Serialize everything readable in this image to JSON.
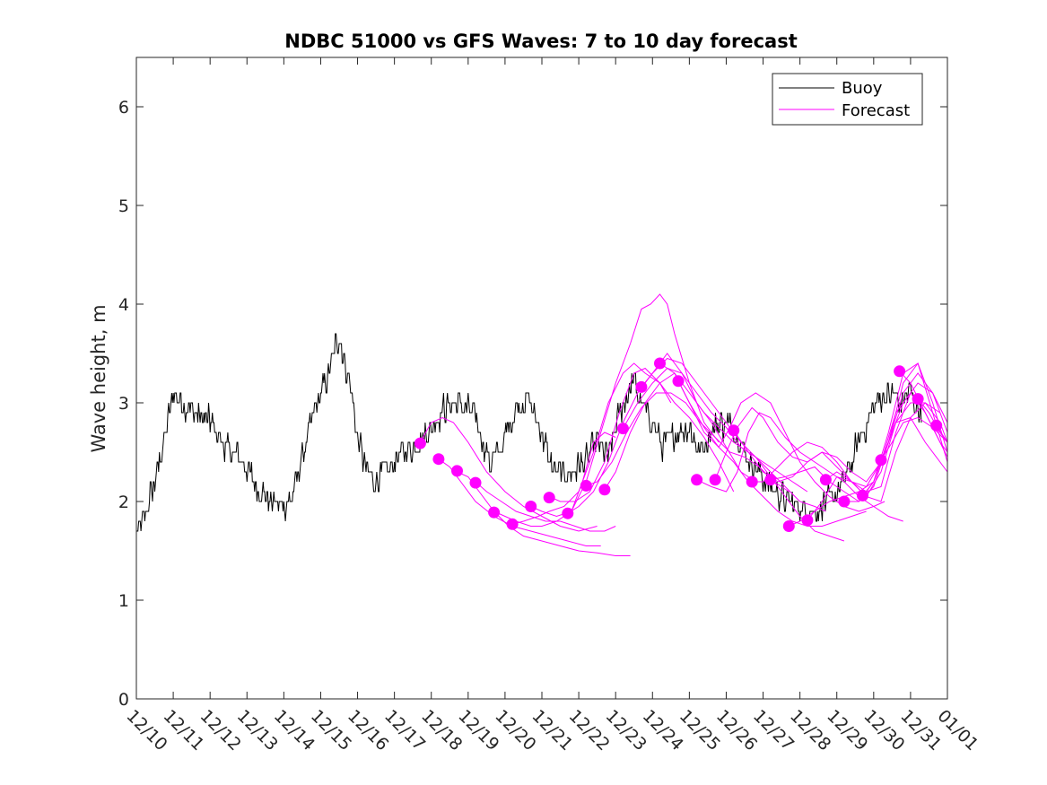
{
  "chart_data": {
    "type": "line",
    "title": "NDBC 51000 vs GFS Waves: 7 to 10 day forecast",
    "xlabel": "",
    "ylabel": "Wave height, m",
    "xlim": [
      0,
      22
    ],
    "ylim": [
      0,
      6.5
    ],
    "x_unit": "days since 12/10",
    "x_ticks": [
      0,
      1,
      2,
      3,
      4,
      5,
      6,
      7,
      8,
      9,
      10,
      11,
      12,
      13,
      14,
      15,
      16,
      17,
      18,
      19,
      20,
      21,
      22
    ],
    "x_tick_labels": [
      "12/10",
      "12/11",
      "12/12",
      "12/13",
      "12/14",
      "12/15",
      "12/16",
      "12/17",
      "12/18",
      "12/19",
      "12/20",
      "12/21",
      "12/22",
      "12/23",
      "12/24",
      "12/25",
      "12/26",
      "12/27",
      "12/28",
      "12/29",
      "12/30",
      "12/31",
      "01/01"
    ],
    "y_ticks": [
      0,
      1,
      2,
      3,
      4,
      5,
      6
    ],
    "y_tick_labels": [
      "0",
      "1",
      "2",
      "3",
      "4",
      "5",
      "6"
    ],
    "grid": false,
    "legend": {
      "position": "top-right",
      "entries": [
        {
          "label": "Buoy",
          "color": "#000000"
        },
        {
          "label": "Forecast",
          "color": "#ff00ff"
        }
      ]
    },
    "colors": {
      "buoy": "#000000",
      "forecast": "#ff00ff"
    },
    "buoy_anchor": {
      "x": [
        0,
        0.2,
        0.5,
        0.8,
        1.0,
        1.2,
        1.6,
        2.0,
        2.4,
        2.8,
        3.2,
        3.5,
        3.8,
        4.2,
        4.5,
        4.8,
        5.2,
        5.5,
        5.6,
        5.8,
        6.0,
        6.2,
        6.5,
        6.8,
        7.2,
        7.5,
        8.0,
        8.3,
        8.8,
        9.2,
        9.6,
        9.9,
        10.3,
        10.6,
        11.0,
        11.2,
        11.5,
        11.8,
        12.2,
        12.5,
        12.8,
        13.2,
        13.5,
        13.8,
        14.0,
        14.3,
        14.6,
        15.0,
        15.3,
        15.6,
        16.0,
        16.3,
        16.5,
        16.8,
        17.2,
        17.6,
        18.0,
        18.4,
        18.8,
        19.2,
        19.6,
        20.0,
        20.2,
        20.5,
        20.7,
        21.0,
        21.3
      ],
      "y": [
        1.65,
        1.8,
        2.2,
        2.7,
        3.1,
        3.0,
        2.9,
        2.8,
        2.55,
        2.45,
        2.2,
        2.05,
        1.95,
        2.0,
        2.45,
        2.85,
        3.3,
        3.7,
        3.5,
        3.2,
        2.65,
        2.35,
        2.2,
        2.3,
        2.5,
        2.55,
        2.75,
        2.95,
        3.0,
        2.85,
        2.4,
        2.55,
        2.95,
        3.05,
        2.7,
        2.4,
        2.25,
        2.3,
        2.4,
        2.6,
        2.45,
        3.0,
        3.2,
        2.9,
        2.8,
        2.55,
        2.7,
        2.75,
        2.5,
        2.75,
        2.8,
        2.7,
        2.5,
        2.35,
        2.15,
        2.0,
        1.95,
        1.9,
        2.0,
        2.2,
        2.6,
        2.95,
        3.05,
        3.1,
        3.0,
        3.1,
        2.9
      ],
      "noise_amplitude": 0.18
    },
    "forecast_series": [
      {
        "name": "f1",
        "x": [
          7.7,
          8.0,
          8.3,
          8.6,
          9.0,
          9.5,
          10.0,
          10.5,
          11.0,
          11.5,
          12.0,
          12.5
        ],
        "y": [
          2.6,
          2.8,
          2.85,
          2.8,
          2.6,
          2.3,
          2.1,
          1.95,
          1.85,
          1.75,
          1.7,
          1.75
        ]
      },
      {
        "name": "f2",
        "x": [
          8.2,
          8.5,
          8.8,
          9.2,
          9.7,
          10.2,
          10.7,
          11.2,
          11.7,
          12.2,
          12.6
        ],
        "y": [
          2.43,
          2.35,
          2.2,
          2.0,
          1.85,
          1.75,
          1.7,
          1.65,
          1.6,
          1.55,
          1.55
        ]
      },
      {
        "name": "f3",
        "x": [
          8.7,
          9.0,
          9.3,
          9.7,
          10.1,
          10.5,
          11.0,
          11.5,
          12.0,
          12.5,
          13.0,
          13.4
        ],
        "y": [
          2.3,
          2.25,
          2.1,
          1.9,
          1.75,
          1.65,
          1.6,
          1.55,
          1.5,
          1.48,
          1.45,
          1.45
        ]
      },
      {
        "name": "f4",
        "x": [
          9.2,
          9.5,
          9.9,
          10.3,
          10.7,
          11.1,
          11.5,
          11.9,
          12.3,
          12.7,
          13.0
        ],
        "y": [
          2.2,
          2.1,
          2.0,
          1.9,
          1.85,
          1.8,
          1.8,
          1.75,
          1.7,
          1.7,
          1.75
        ]
      },
      {
        "name": "f5",
        "x": [
          9.7,
          10.0,
          10.3,
          10.7,
          11.0,
          11.4,
          11.8,
          12.1,
          12.4,
          12.7,
          13.0
        ],
        "y": [
          1.9,
          1.85,
          1.8,
          1.75,
          1.75,
          1.8,
          1.9,
          2.2,
          2.6,
          2.7,
          2.65
        ]
      },
      {
        "name": "f6",
        "x": [
          10.2,
          10.5,
          10.9,
          11.2,
          11.6,
          12.0,
          12.4,
          12.8,
          13.2,
          13.5,
          13.8,
          14.2,
          14.5
        ],
        "y": [
          1.77,
          1.8,
          1.85,
          1.9,
          1.95,
          2.1,
          2.5,
          3.0,
          3.3,
          3.4,
          3.3,
          3.2,
          3.0
        ]
      },
      {
        "name": "f7",
        "x": [
          10.7,
          11.0,
          11.4,
          11.8,
          12.2,
          12.6,
          13.0,
          13.4,
          13.7,
          13.95,
          14.2,
          14.4,
          14.6,
          15.0,
          15.4,
          15.8
        ],
        "y": [
          1.95,
          1.9,
          1.85,
          1.9,
          2.2,
          2.7,
          3.2,
          3.6,
          3.95,
          4.0,
          4.1,
          4.0,
          3.7,
          3.2,
          2.8,
          2.6
        ]
      },
      {
        "name": "f8",
        "x": [
          11.2,
          11.5,
          11.9,
          12.3,
          12.7,
          13.1,
          13.5,
          13.8,
          14.2,
          14.6,
          15.0,
          15.4,
          15.8,
          16.2
        ],
        "y": [
          2.05,
          2.0,
          2.0,
          2.1,
          2.4,
          2.9,
          3.3,
          3.35,
          3.2,
          3.0,
          2.85,
          2.65,
          2.4,
          2.1
        ]
      },
      {
        "name": "f9",
        "x": [
          11.7,
          12.0,
          12.4,
          12.8,
          13.2,
          13.6,
          14.0,
          14.4,
          14.8,
          15.2,
          15.6,
          16.0,
          16.4,
          16.8
        ],
        "y": [
          1.88,
          1.95,
          2.1,
          2.4,
          2.8,
          3.1,
          3.3,
          3.5,
          3.3,
          3.0,
          2.8,
          2.55,
          2.3,
          2.2
        ]
      },
      {
        "name": "f10",
        "x": [
          12.2,
          12.5,
          12.9,
          13.3,
          13.7,
          14.1,
          14.5,
          14.9,
          15.3,
          15.7,
          16.1,
          16.5,
          16.9,
          17.3,
          17.7
        ],
        "y": [
          2.16,
          2.2,
          2.4,
          2.7,
          2.95,
          3.1,
          3.1,
          3.0,
          2.8,
          2.65,
          2.5,
          2.45,
          2.35,
          2.2,
          2.1
        ]
      },
      {
        "name": "f11",
        "x": [
          12.7,
          13.0,
          13.4,
          13.8,
          14.2,
          14.6,
          15.0,
          15.4,
          15.8,
          16.2,
          16.6,
          17.0,
          17.4,
          17.8,
          18.2
        ],
        "y": [
          2.12,
          2.3,
          2.7,
          3.0,
          3.2,
          3.3,
          3.1,
          2.9,
          2.75,
          2.6,
          2.5,
          2.4,
          2.3,
          2.2,
          2.1
        ]
      },
      {
        "name": "f12",
        "x": [
          13.2,
          13.6,
          14.0,
          14.4,
          14.8,
          15.2,
          15.6,
          16.0,
          16.4,
          16.8,
          17.2,
          17.6,
          18.0,
          18.4,
          18.7
        ],
        "y": [
          2.74,
          3.0,
          3.2,
          3.35,
          3.3,
          3.1,
          2.9,
          2.75,
          2.55,
          2.45,
          2.3,
          2.15,
          2.0,
          1.95,
          1.9
        ]
      },
      {
        "name": "f13",
        "x": [
          13.7,
          14.0,
          14.4,
          14.8,
          15.2,
          15.6,
          16.0,
          16.4,
          16.8,
          17.2,
          17.6,
          18.0,
          18.4,
          18.8,
          19.2
        ],
        "y": [
          3.16,
          3.3,
          3.45,
          3.4,
          3.2,
          3.0,
          2.8,
          2.6,
          2.45,
          2.25,
          2.05,
          1.85,
          1.7,
          1.65,
          1.6
        ]
      },
      {
        "name": "f14",
        "x": [
          14.2,
          14.6,
          15.0,
          15.4,
          15.8,
          16.2,
          16.6,
          17.0,
          17.4,
          17.8,
          18.2,
          18.6,
          19.0,
          19.4,
          19.8
        ],
        "y": [
          3.4,
          3.3,
          3.0,
          2.75,
          2.55,
          2.4,
          2.2,
          2.05,
          1.9,
          1.8,
          1.75,
          1.75,
          1.8,
          1.85,
          1.9
        ]
      },
      {
        "name": "f15",
        "x": [
          14.7,
          15.0,
          15.4,
          15.8,
          16.1,
          16.4,
          16.8,
          17.2,
          17.6,
          18.0,
          18.4,
          18.8,
          19.2,
          19.6,
          20.0,
          20.3
        ],
        "y": [
          3.22,
          3.0,
          2.7,
          2.55,
          2.75,
          3.0,
          3.1,
          3.0,
          2.7,
          2.4,
          2.2,
          2.05,
          1.95,
          1.9,
          1.95,
          2.0
        ]
      },
      {
        "name": "f16",
        "x": [
          15.2,
          15.6,
          16.0,
          16.3,
          16.6,
          16.9,
          17.2,
          17.6,
          18.0,
          18.4,
          18.8,
          19.2,
          19.6,
          20.0,
          20.4,
          20.8
        ],
        "y": [
          2.22,
          2.15,
          2.1,
          2.3,
          2.7,
          2.9,
          2.85,
          2.65,
          2.5,
          2.4,
          2.3,
          2.2,
          2.05,
          1.95,
          1.85,
          1.8
        ]
      },
      {
        "name": "f17",
        "x": [
          15.7,
          16.0,
          16.3,
          16.7,
          17.0,
          17.4,
          17.8,
          18.2,
          18.6,
          19.0,
          19.4,
          19.8,
          20.2,
          20.6,
          21.0
        ],
        "y": [
          2.22,
          2.5,
          2.75,
          2.95,
          2.85,
          2.6,
          2.45,
          2.4,
          2.5,
          2.45,
          2.3,
          2.2,
          2.4,
          2.9,
          3.1
        ]
      },
      {
        "name": "f18",
        "x": [
          16.2,
          16.6,
          17.0,
          17.4,
          17.8,
          18.2,
          18.6,
          19.0,
          19.4,
          19.8,
          20.2,
          20.6,
          21.0,
          21.4,
          21.8
        ],
        "y": [
          2.72,
          2.5,
          2.3,
          2.2,
          2.25,
          2.4,
          2.5,
          2.35,
          2.2,
          2.15,
          2.4,
          2.8,
          3.0,
          3.0,
          2.9
        ]
      },
      {
        "name": "f19",
        "x": [
          16.7,
          17.0,
          17.4,
          17.8,
          18.2,
          18.6,
          19.0,
          19.4,
          19.8,
          20.2,
          20.6,
          21.0,
          21.4,
          21.8,
          22.0
        ],
        "y": [
          2.2,
          2.2,
          2.35,
          2.5,
          2.6,
          2.55,
          2.4,
          2.2,
          2.05,
          2.0,
          2.5,
          2.85,
          3.0,
          2.8,
          2.6
        ]
      },
      {
        "name": "f20",
        "x": [
          17.2,
          17.6,
          18.0,
          18.4,
          18.8,
          19.2,
          19.6,
          20.0,
          20.4,
          20.8,
          21.2,
          21.6,
          22.0
        ],
        "y": [
          2.22,
          2.25,
          2.3,
          2.35,
          2.2,
          2.1,
          2.0,
          2.2,
          2.6,
          3.2,
          3.4,
          3.0,
          2.5
        ]
      },
      {
        "name": "f21",
        "x": [
          17.7,
          18.0,
          18.4,
          18.8,
          19.2,
          19.6,
          20.0,
          20.4,
          20.8,
          21.2,
          21.6,
          22.0
        ],
        "y": [
          1.75,
          1.8,
          1.9,
          2.0,
          2.05,
          2.1,
          2.2,
          2.7,
          3.3,
          3.4,
          2.9,
          2.4
        ]
      },
      {
        "name": "f22",
        "x": [
          18.2,
          18.6,
          19.0,
          19.4,
          19.8,
          20.2,
          20.6,
          21.0,
          21.4,
          21.8,
          22.0
        ],
        "y": [
          1.81,
          2.0,
          2.25,
          2.2,
          2.1,
          2.15,
          2.7,
          3.1,
          2.9,
          2.6,
          2.5
        ]
      },
      {
        "name": "f23",
        "x": [
          18.7,
          19.0,
          19.4,
          19.8,
          20.2,
          20.6,
          21.0,
          21.4,
          21.8,
          22.0
        ],
        "y": [
          2.22,
          2.3,
          2.2,
          2.05,
          2.3,
          2.8,
          2.85,
          2.6,
          2.4,
          2.3
        ]
      },
      {
        "name": "f24",
        "x": [
          19.2,
          19.6,
          20.0,
          20.4,
          20.8,
          21.2,
          21.6,
          22.0
        ],
        "y": [
          2.0,
          2.0,
          2.15,
          2.6,
          3.0,
          3.2,
          3.1,
          2.8
        ]
      },
      {
        "name": "f25",
        "x": [
          19.7,
          20.0,
          20.4,
          20.8,
          21.2,
          21.6,
          22.0
        ],
        "y": [
          2.06,
          2.2,
          2.6,
          3.1,
          3.3,
          3.1,
          2.7
        ]
      },
      {
        "name": "f26",
        "x": [
          20.2,
          20.5,
          20.8,
          21.2,
          21.6,
          22.0
        ],
        "y": [
          2.42,
          2.6,
          2.8,
          2.85,
          2.75,
          2.6
        ]
      },
      {
        "name": "f27",
        "x": [
          20.7,
          21.0,
          21.4,
          21.8,
          22.0
        ],
        "y": [
          3.32,
          3.2,
          2.9,
          2.6,
          2.45
        ]
      },
      {
        "name": "f28",
        "x": [
          21.2,
          21.5,
          21.8,
          22.0
        ],
        "y": [
          3.04,
          2.9,
          2.7,
          2.6
        ]
      },
      {
        "name": "f29",
        "x": [
          21.7,
          22.0
        ],
        "y": [
          2.77,
          2.6
        ]
      }
    ],
    "forecast_markers": {
      "x": [
        7.7,
        8.2,
        8.7,
        9.2,
        9.7,
        10.2,
        10.7,
        11.2,
        11.7,
        12.2,
        12.7,
        13.2,
        13.7,
        14.2,
        14.7,
        15.2,
        15.7,
        16.2,
        16.7,
        17.2,
        17.7,
        18.2,
        18.7,
        19.2,
        19.7,
        20.2,
        20.7,
        21.2,
        21.7
      ],
      "y": [
        2.59,
        2.43,
        2.31,
        2.19,
        1.89,
        1.77,
        1.95,
        2.04,
        1.88,
        2.16,
        2.12,
        2.74,
        3.16,
        3.4,
        3.22,
        2.22,
        2.22,
        2.72,
        2.2,
        2.22,
        1.75,
        1.81,
        2.22,
        2.0,
        2.06,
        2.42,
        3.32,
        3.04,
        2.77
      ]
    }
  }
}
